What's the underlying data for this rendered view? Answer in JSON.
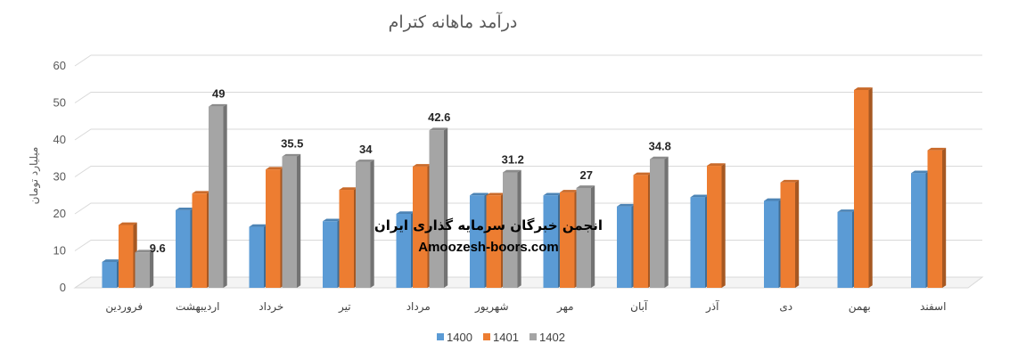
{
  "watermark": {
    "line1": "انجمن خبرگان سرمایه گذاری ایران",
    "line2": "Amoozesh-boors.com"
  },
  "chart_data": {
    "type": "bar",
    "title": "درآمد ماهانه کترام",
    "ylabel": "میلیارد تومان",
    "xlabel": "",
    "ylim": [
      0,
      60
    ],
    "yticks": [
      0,
      10,
      20,
      30,
      40,
      50,
      60
    ],
    "grid": true,
    "legend_position": "bottom",
    "categories": [
      "فروردین",
      "اردیبهشت",
      "خرداد",
      "تیر",
      "مرداد",
      "شهریور",
      "مهر",
      "آبان",
      "آذر",
      "دی",
      "بهمن",
      "اسفند"
    ],
    "series": [
      {
        "name": "1400",
        "color": "#5B9BD5",
        "values": [
          7,
          21,
          16.5,
          18,
          20,
          25,
          25,
          22,
          24.5,
          23.5,
          20.5,
          31
        ]
      },
      {
        "name": "1401",
        "color": "#ED7D31",
        "values": [
          17,
          25.5,
          32,
          26.5,
          32.8,
          25,
          25.8,
          30.5,
          33,
          28.5,
          53.5,
          37.2
        ]
      },
      {
        "name": "1402",
        "color": "#A5A5A5",
        "values": [
          9.6,
          49,
          35.5,
          34,
          42.6,
          31.2,
          27,
          34.8,
          null,
          null,
          null,
          null
        ]
      }
    ],
    "data_labels": [
      {
        "series": "1402",
        "category": "فروردین",
        "text": "9.6"
      },
      {
        "series": "1402",
        "category": "اردیبهشت",
        "text": "49"
      },
      {
        "series": "1402",
        "category": "خرداد",
        "text": "35.5"
      },
      {
        "series": "1402",
        "category": "تیر",
        "text": "34"
      },
      {
        "series": "1402",
        "category": "مرداد",
        "text": "42.6"
      },
      {
        "series": "1402",
        "category": "شهریور",
        "text": "31.2"
      },
      {
        "series": "1402",
        "category": "مهر",
        "text": "27"
      },
      {
        "series": "1402",
        "category": "آبان",
        "text": "34.8"
      }
    ]
  }
}
